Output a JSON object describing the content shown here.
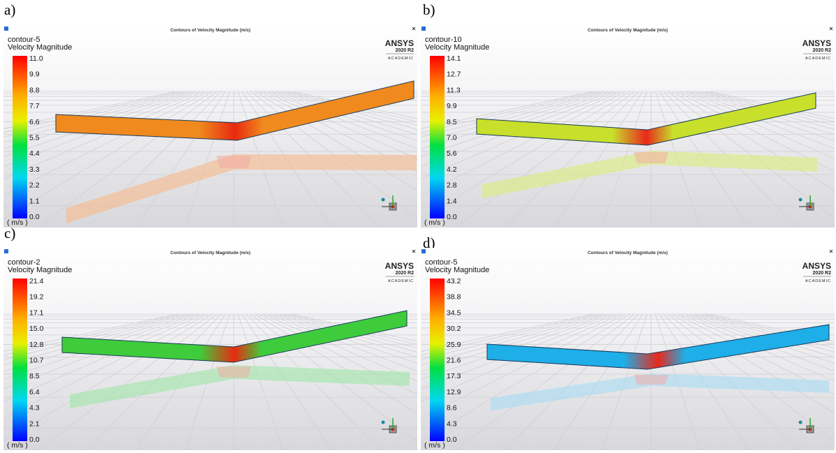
{
  "panels": [
    {
      "label": "a)",
      "window_title": "Contours of Velocity Magnitude (m/s)",
      "contour": "contour-5",
      "quantity": "Velocity Magnitude",
      "unit": "( m/s )",
      "colorbar_ticks": [
        "11.0",
        "9.9",
        "8.8",
        "7.7",
        "6.6",
        "5.5",
        "4.4",
        "3.3",
        "2.2",
        "1.1",
        "0.0"
      ],
      "logo": {
        "brand": "ANSYS",
        "version": "2020 R2",
        "edition": "ACADEMIC"
      }
    },
    {
      "label": "b)",
      "window_title": "Contours of Velocity Magnitude (m/s)",
      "contour": "contour-10",
      "quantity": "Velocity Magnitude",
      "unit": "( m/s )",
      "colorbar_ticks": [
        "14.1",
        "12.7",
        "11.3",
        "9.9",
        "8.5",
        "7.0",
        "5.6",
        "4.2",
        "2.8",
        "1.4",
        "0.0"
      ],
      "logo": {
        "brand": "ANSYS",
        "version": "2020 R2",
        "edition": "ACADEMIC"
      }
    },
    {
      "label": "c)",
      "window_title": "Contours of Velocity Magnitude (m/s)",
      "contour": "contour-2",
      "quantity": "Velocity Magnitude",
      "unit": "( m/s )",
      "colorbar_ticks": [
        "21.4",
        "19.2",
        "17.1",
        "15.0",
        "12.8",
        "10.7",
        "8.5",
        "6.4",
        "4.3",
        "2.1",
        "0.0"
      ],
      "logo": {
        "brand": "ANSYS",
        "version": "2020 R2",
        "edition": "ACADEMIC"
      }
    },
    {
      "label": "d)",
      "window_title": "Contours of Velocity Magnitude (m/s)",
      "contour": "contour-5",
      "quantity": "Velocity Magnitude",
      "unit": "( m/s )",
      "colorbar_ticks": [
        "43.2",
        "38.8",
        "34.5",
        "30.2",
        "25.9",
        "21.6",
        "17.3",
        "12.9",
        "8.6",
        "4.3",
        "0.0"
      ],
      "logo": {
        "brand": "ANSYS",
        "version": "2020 R2",
        "edition": "ACADEMIC"
      }
    }
  ]
}
